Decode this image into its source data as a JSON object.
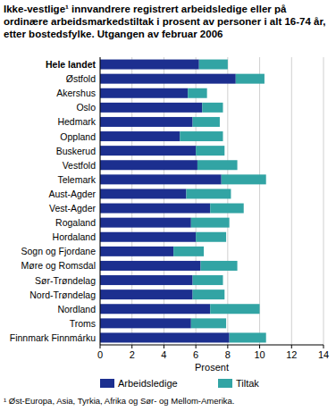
{
  "chart_data": {
    "type": "bar",
    "orientation": "horizontal",
    "stacked": true,
    "grid": true,
    "legend": "bottom",
    "title": "Ikke-vestlige¹ innvandrere registrert arbeidsledige eller på ordinære arbeidsmarkedstiltak i prosent av personer i alt 16-74 år, etter bostedsfylke. Utgangen av februar 2006",
    "x_label": "Prosent",
    "footnote": "¹ Øst-Europa, Asia, Tyrkia, Afrika og Sør- og Mellom-Amerika.",
    "categories": [
      "Hele landet",
      "Østfold",
      "Akershus",
      "Oslo",
      "Hedmark",
      "Oppland",
      "Buskerud",
      "Vestfold",
      "Telemark",
      "Aust-Agder",
      "Vest-Agder",
      "Rogaland",
      "Hordaland",
      "Sogn og Fjordane",
      "Møre og Romsdal",
      "Sør-Trøndelag",
      "Nord-Trøndelag",
      "Nordland",
      "Troms",
      "Finnmark Finnmárku"
    ],
    "series": [
      {
        "name": "Arbeidsledige",
        "color": "#1c2f8f",
        "values": [
          6.2,
          8.5,
          5.5,
          6.4,
          5.8,
          5.0,
          6.0,
          6.1,
          7.6,
          5.4,
          6.9,
          5.7,
          6.0,
          4.6,
          6.3,
          5.8,
          5.8,
          6.9,
          5.7,
          8.1
        ]
      },
      {
        "name": "Tiltak",
        "color": "#32a4a4",
        "values": [
          1.8,
          1.8,
          1.2,
          1.3,
          1.7,
          2.7,
          1.8,
          2.5,
          2.8,
          2.8,
          2.1,
          2.4,
          1.9,
          1.9,
          2.3,
          1.9,
          2.0,
          3.1,
          2.2,
          2.3
        ]
      }
    ],
    "xlim": [
      0,
      14
    ],
    "xticks": [
      0,
      2,
      4,
      6,
      8,
      10,
      12,
      14
    ]
  }
}
